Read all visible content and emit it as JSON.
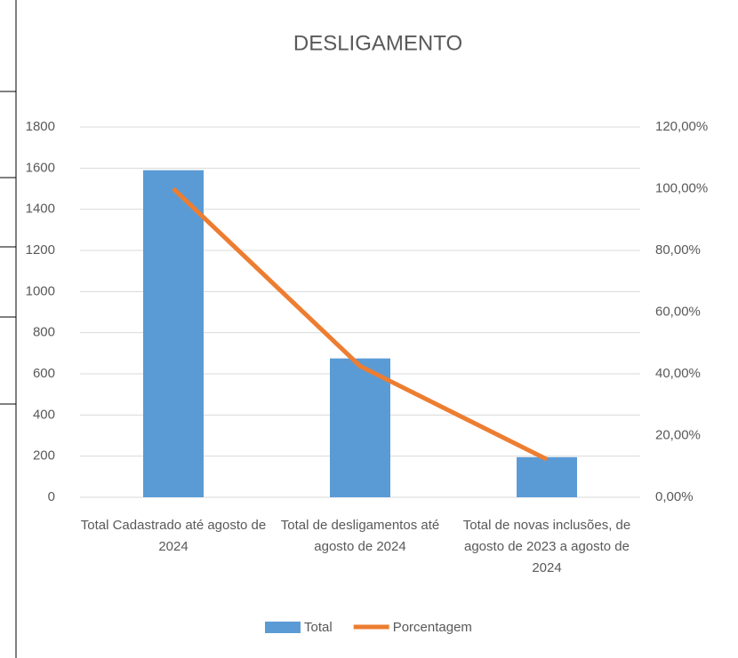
{
  "chart_data": {
    "type": "bar-line",
    "title": "DESLIGAMENTO",
    "categories": [
      "Total Cadastrado até agosto de 2024",
      "Total de desligamentos até agosto de 2024",
      "Total de novas inclusões, de agosto de 2023 a agosto de 2024"
    ],
    "series": [
      {
        "name": "Total",
        "type": "bar",
        "color": "#5b9bd5",
        "values": [
          1590,
          675,
          195
        ]
      },
      {
        "name": "Porcentagem",
        "type": "line",
        "color": "#ed7d31",
        "axis": "y2",
        "values": [
          100,
          42.5,
          12.3
        ]
      }
    ],
    "ylim": [
      0,
      1800
    ],
    "yticks": [
      0,
      200,
      400,
      600,
      800,
      1000,
      1200,
      1400,
      1600,
      1800
    ],
    "y2lim": [
      0,
      120
    ],
    "y2ticks": [
      {
        "value": 0,
        "label": "0,00%"
      },
      {
        "value": 20,
        "label": "20,00%"
      },
      {
        "value": 40,
        "label": "40,00%"
      },
      {
        "value": 60,
        "label": "60,00%"
      },
      {
        "value": 80,
        "label": "80,00%"
      },
      {
        "value": 100,
        "label": "100,00%"
      },
      {
        "value": 120,
        "label": "120,00%"
      }
    ],
    "grid": true,
    "legend": "bottom"
  }
}
